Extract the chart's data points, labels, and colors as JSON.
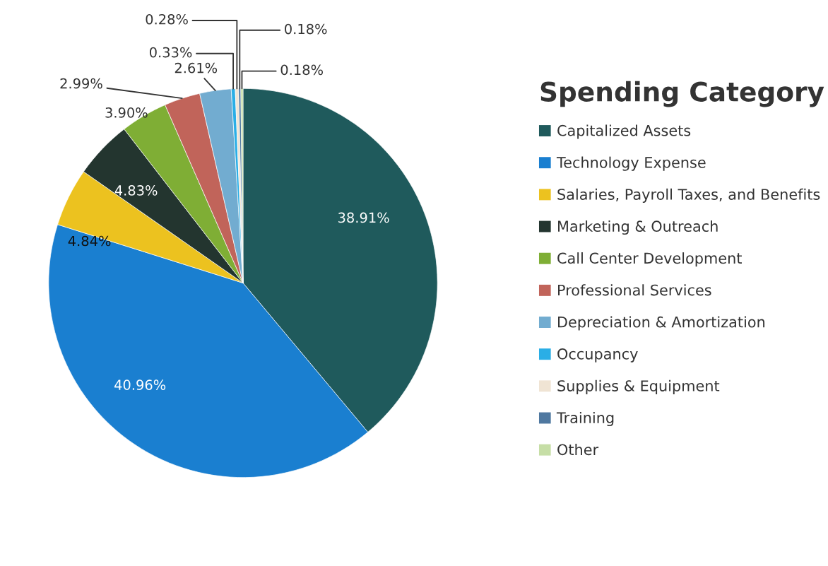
{
  "chart_data": {
    "type": "pie",
    "legend_title": "Spending Category",
    "legend": "right",
    "categories": [
      "Capitalized Assets",
      "Technology Expense",
      "Salaries, Payroll Taxes, and Benefits",
      "Marketing & Outreach",
      "Call Center Development",
      "Professional Services",
      "Depreciation & Amortization",
      "Occupancy",
      "Supplies & Equipment",
      "Training",
      "Other"
    ],
    "values": [
      38.91,
      40.96,
      4.84,
      4.83,
      3.9,
      2.99,
      2.61,
      0.33,
      0.28,
      0.18,
      0.18
    ],
    "value_labels": [
      "38.91%",
      "40.96%",
      "4.84%",
      "4.83%",
      "3.90%",
      "2.99%",
      "2.61%",
      "0.33%",
      "0.28%",
      "0.18%",
      "0.18%"
    ],
    "colors": [
      "#1f5a5c",
      "#1a7fd0",
      "#ecc21f",
      "#23352f",
      "#7fae35",
      "#c1645a",
      "#72acd0",
      "#2aaee6",
      "#f0e4d4",
      "#4f78a0",
      "#c6dea6"
    ]
  }
}
